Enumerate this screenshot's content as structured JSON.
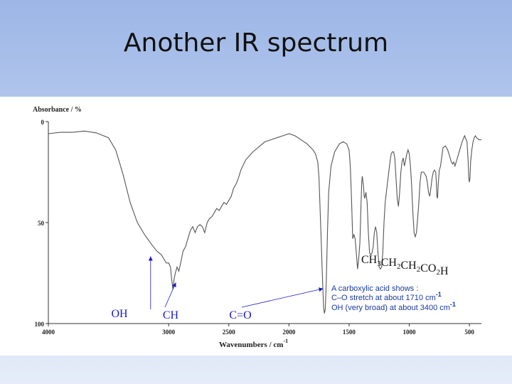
{
  "slide": {
    "title": "Another IR spectrum"
  },
  "chart_data": {
    "type": "line",
    "title": "",
    "xlabel": "Wavenumbers / cm",
    "xlabel_sup": "-1",
    "ylabel": "Absorbance / %",
    "xlim": [
      4000,
      400
    ],
    "ylim": [
      0,
      100
    ],
    "x_reversed": true,
    "y_inverted": true,
    "grid": false,
    "xticks": [
      4000,
      3000,
      2500,
      2000,
      1500,
      1000,
      500
    ],
    "yticks": [
      0,
      50,
      100
    ],
    "series": [
      {
        "color": "#555555",
        "points": [
          [
            4000,
            6
          ],
          [
            3900,
            5.3
          ],
          [
            3800,
            5.3
          ],
          [
            3700,
            4.7
          ],
          [
            3600,
            5.6
          ],
          [
            3500,
            8
          ],
          [
            3440,
            14
          ],
          [
            3380,
            26
          ],
          [
            3320,
            40
          ],
          [
            3260,
            50
          ],
          [
            3200,
            56
          ],
          [
            3140,
            61
          ],
          [
            3100,
            64
          ],
          [
            3060,
            66
          ],
          [
            3040,
            68
          ],
          [
            3020,
            70
          ],
          [
            3000,
            70
          ],
          [
            2985,
            72
          ],
          [
            2975,
            78
          ],
          [
            2965,
            83
          ],
          [
            2955,
            78
          ],
          [
            2945,
            75
          ],
          [
            2930,
            72
          ],
          [
            2915,
            74
          ],
          [
            2900,
            70
          ],
          [
            2880,
            64
          ],
          [
            2860,
            62
          ],
          [
            2840,
            58
          ],
          [
            2820,
            54
          ],
          [
            2800,
            52
          ],
          [
            2780,
            55
          ],
          [
            2760,
            52
          ],
          [
            2740,
            51
          ],
          [
            2720,
            52
          ],
          [
            2700,
            55
          ],
          [
            2680,
            50
          ],
          [
            2660,
            48
          ],
          [
            2640,
            47
          ],
          [
            2620,
            45
          ],
          [
            2600,
            43
          ],
          [
            2580,
            44
          ],
          [
            2560,
            42
          ],
          [
            2540,
            40
          ],
          [
            2520,
            41
          ],
          [
            2500,
            39
          ],
          [
            2480,
            37
          ],
          [
            2460,
            33
          ],
          [
            2440,
            31
          ],
          [
            2420,
            28
          ],
          [
            2400,
            24
          ],
          [
            2360,
            19
          ],
          [
            2300,
            15
          ],
          [
            2200,
            10
          ],
          [
            2100,
            8
          ],
          [
            2050,
            7
          ],
          [
            2000,
            6
          ],
          [
            1950,
            7
          ],
          [
            1900,
            9
          ],
          [
            1850,
            11
          ],
          [
            1800,
            14
          ],
          [
            1780,
            16
          ],
          [
            1760,
            20
          ],
          [
            1750,
            28
          ],
          [
            1740,
            45
          ],
          [
            1730,
            62
          ],
          [
            1720,
            80
          ],
          [
            1712,
            92
          ],
          [
            1705,
            95
          ],
          [
            1698,
            93
          ],
          [
            1690,
            80
          ],
          [
            1680,
            55
          ],
          [
            1670,
            35
          ],
          [
            1650,
            22
          ],
          [
            1620,
            15
          ],
          [
            1580,
            11
          ],
          [
            1550,
            10
          ],
          [
            1520,
            11
          ],
          [
            1500,
            14
          ],
          [
            1490,
            22
          ],
          [
            1480,
            38
          ],
          [
            1470,
            58
          ],
          [
            1460,
            56
          ],
          [
            1450,
            58
          ],
          [
            1440,
            65
          ],
          [
            1430,
            73
          ],
          [
            1420,
            68
          ],
          [
            1410,
            60
          ],
          [
            1400,
            40
          ],
          [
            1395,
            30
          ],
          [
            1390,
            27
          ],
          [
            1385,
            30
          ],
          [
            1380,
            32
          ],
          [
            1375,
            37
          ],
          [
            1370,
            38
          ],
          [
            1360,
            35
          ],
          [
            1350,
            40
          ],
          [
            1340,
            55
          ],
          [
            1330,
            65
          ],
          [
            1320,
            66
          ],
          [
            1310,
            65
          ],
          [
            1300,
            62
          ],
          [
            1290,
            55
          ],
          [
            1280,
            52
          ],
          [
            1270,
            55
          ],
          [
            1260,
            65
          ],
          [
            1250,
            72
          ],
          [
            1240,
            73
          ],
          [
            1230,
            72
          ],
          [
            1220,
            65
          ],
          [
            1210,
            50
          ],
          [
            1200,
            40
          ],
          [
            1180,
            30
          ],
          [
            1160,
            20
          ],
          [
            1150,
            16
          ],
          [
            1140,
            15
          ],
          [
            1130,
            15
          ],
          [
            1120,
            18
          ],
          [
            1110,
            28
          ],
          [
            1100,
            38
          ],
          [
            1090,
            42
          ],
          [
            1080,
            35
          ],
          [
            1070,
            25
          ],
          [
            1060,
            20
          ],
          [
            1050,
            18
          ],
          [
            1040,
            22
          ],
          [
            1030,
            19
          ],
          [
            1020,
            16
          ],
          [
            1010,
            14
          ],
          [
            1000,
            16
          ],
          [
            990,
            22
          ],
          [
            980,
            32
          ],
          [
            970,
            45
          ],
          [
            960,
            55
          ],
          [
            950,
            57
          ],
          [
            940,
            55
          ],
          [
            930,
            48
          ],
          [
            920,
            40
          ],
          [
            910,
            30
          ],
          [
            900,
            25
          ],
          [
            880,
            25
          ],
          [
            860,
            27
          ],
          [
            850,
            30
          ],
          [
            840,
            35
          ],
          [
            830,
            37
          ],
          [
            820,
            33
          ],
          [
            810,
            28
          ],
          [
            800,
            25
          ],
          [
            790,
            24
          ],
          [
            780,
            25
          ],
          [
            775,
            30
          ],
          [
            770,
            37
          ],
          [
            765,
            38
          ],
          [
            760,
            32
          ],
          [
            755,
            28
          ],
          [
            750,
            24
          ],
          [
            740,
            22
          ],
          [
            720,
            13
          ],
          [
            700,
            12
          ],
          [
            680,
            14
          ],
          [
            660,
            18
          ],
          [
            650,
            20
          ],
          [
            640,
            21
          ],
          [
            630,
            20
          ],
          [
            620,
            22
          ],
          [
            610,
            20
          ],
          [
            600,
            18
          ],
          [
            580,
            14
          ],
          [
            560,
            10
          ],
          [
            540,
            7
          ],
          [
            520,
            10
          ],
          [
            510,
            20
          ],
          [
            505,
            28
          ],
          [
            500,
            30
          ],
          [
            495,
            28
          ],
          [
            490,
            20
          ],
          [
            480,
            14
          ],
          [
            470,
            10
          ],
          [
            460,
            8
          ],
          [
            450,
            7
          ],
          [
            440,
            8
          ],
          [
            420,
            9
          ],
          [
            400,
            9
          ]
        ]
      }
    ],
    "annotations": [
      {
        "text": "OH",
        "wavenumber": 3150,
        "absorbance": 66
      },
      {
        "text": "CH",
        "wavenumber": 2940,
        "absorbance": 79
      },
      {
        "text": "C=O",
        "wavenumber": 1715,
        "absorbance": 82
      }
    ],
    "formula": [
      {
        "t": "CH",
        "sub": ""
      },
      {
        "t": "",
        "sub": "3"
      },
      {
        "t": "CH",
        "sub": ""
      },
      {
        "t": "",
        "sub": "2"
      },
      {
        "t": "CH",
        "sub": ""
      },
      {
        "t": "",
        "sub": "2"
      },
      {
        "t": "CO",
        "sub": ""
      },
      {
        "t": "",
        "sub": "2"
      },
      {
        "t": "H",
        "sub": ""
      }
    ],
    "note": {
      "line1": "A carboxylic acid shows :",
      "line2": "C–O stretch at about 1710 cm",
      "line2_sup": "-1",
      "line3": "OH (very broad) at about 3400 cm",
      "line3_sup": "-1"
    },
    "colors": {
      "annotation": "#1a1acc",
      "note": "#1a3aa0",
      "curve": "#555555"
    }
  }
}
